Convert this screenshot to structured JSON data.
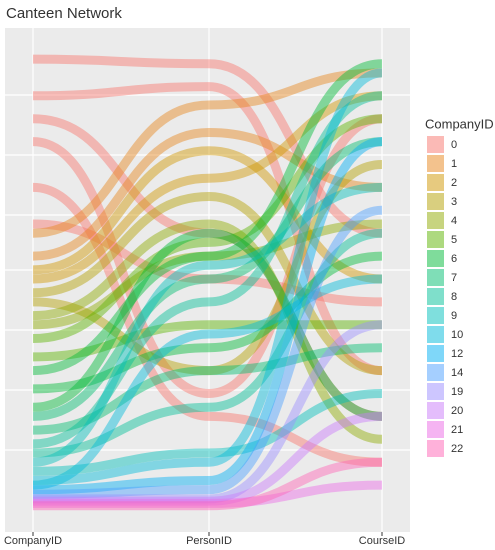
{
  "chart_data": {
    "type": "parallel",
    "title": "Canteen Network",
    "categories": [
      "CompanyID",
      "PersonID",
      "CourseID"
    ],
    "legend_title": "CompanyID",
    "ylim": [
      0,
      1
    ],
    "series": [
      {
        "name": "0",
        "color": "#F8766D",
        "lines": [
          [
            0.98,
            0.97,
            0.6
          ],
          [
            0.9,
            0.92,
            0.3
          ],
          [
            0.8,
            0.25,
            0.85
          ],
          [
            0.7,
            0.2,
            0.1
          ],
          [
            0.62,
            0.5,
            0.45
          ],
          [
            0.85,
            0.6,
            0.2
          ]
        ]
      },
      {
        "name": "1",
        "color": "#E7861B",
        "lines": [
          [
            0.6,
            0.88,
            0.95
          ],
          [
            0.55,
            0.82,
            0.7
          ]
        ]
      },
      {
        "name": "2",
        "color": "#D09600",
        "lines": [
          [
            0.52,
            0.78,
            0.5
          ],
          [
            0.5,
            0.72,
            0.9
          ]
        ]
      },
      {
        "name": "3",
        "color": "#B3A000",
        "lines": [
          [
            0.47,
            0.68,
            0.3
          ],
          [
            0.45,
            0.3,
            0.75
          ]
        ]
      },
      {
        "name": "4",
        "color": "#8FAA00",
        "lines": [
          [
            0.42,
            0.62,
            0.15
          ],
          [
            0.4,
            0.55,
            0.62
          ]
        ]
      },
      {
        "name": "5",
        "color": "#5BB300",
        "lines": [
          [
            0.37,
            0.58,
            0.85
          ],
          [
            0.33,
            0.4,
            0.4
          ]
        ]
      },
      {
        "name": "6",
        "color": "#00BA38",
        "lines": [
          [
            0.3,
            0.55,
            0.97
          ],
          [
            0.26,
            0.35,
            0.55
          ],
          [
            0.22,
            0.6,
            0.2
          ]
        ]
      },
      {
        "name": "7",
        "color": "#00BD6F",
        "lines": [
          [
            0.2,
            0.5,
            0.8
          ],
          [
            0.17,
            0.3,
            0.35
          ]
        ]
      },
      {
        "name": "8",
        "color": "#00BF97",
        "lines": [
          [
            0.14,
            0.45,
            0.9
          ],
          [
            0.12,
            0.22,
            0.6
          ]
        ]
      },
      {
        "name": "9",
        "color": "#00BFBB",
        "lines": [
          [
            0.1,
            0.53,
            0.7
          ],
          [
            0.08,
            0.12,
            0.25
          ]
        ]
      },
      {
        "name": "10",
        "color": "#00BADA",
        "lines": [
          [
            0.06,
            0.1,
            0.95
          ],
          [
            0.05,
            0.38,
            0.5
          ]
        ]
      },
      {
        "name": "12",
        "color": "#00AFF4",
        "lines": [
          [
            0.04,
            0.06,
            0.8
          ]
        ]
      },
      {
        "name": "14",
        "color": "#4BA0FF",
        "lines": [
          [
            0.03,
            0.04,
            0.65
          ]
        ]
      },
      {
        "name": "19",
        "color": "#9B8EFF",
        "lines": [
          [
            0.02,
            0.02,
            0.4
          ]
        ]
      },
      {
        "name": "20",
        "color": "#CA7BFA",
        "lines": [
          [
            0.015,
            0.015,
            0.2
          ]
        ]
      },
      {
        "name": "21",
        "color": "#EB6AE6",
        "lines": [
          [
            0.01,
            0.01,
            0.05
          ]
        ]
      },
      {
        "name": "22",
        "color": "#FF63B6",
        "lines": [
          [
            0.005,
            0.005,
            0.1
          ]
        ]
      }
    ]
  }
}
